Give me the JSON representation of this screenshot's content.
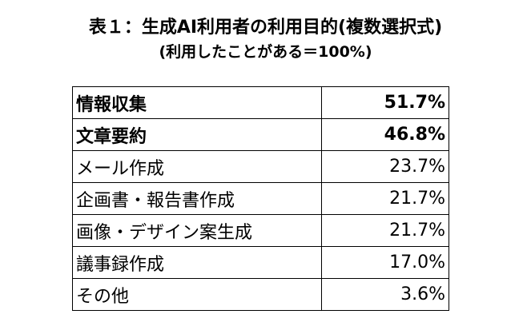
{
  "header": {
    "title": "表１：生成AI利用者の利用目的(複数選択式)",
    "subtitle": "(利用したことがある＝100%)"
  },
  "table": {
    "rows": [
      [
        "情報収集",
        "51.7%"
      ],
      [
        "文章要約",
        "46.8%"
      ],
      [
        "メール作成",
        "23.7%"
      ],
      [
        "企画書・報告書作成",
        "21.7%"
      ],
      [
        "画像・デザイン案生成",
        "21.7%"
      ],
      [
        "議事録作成",
        "17.0%"
      ],
      [
        "その他",
        "3.6%"
      ]
    ]
  }
}
